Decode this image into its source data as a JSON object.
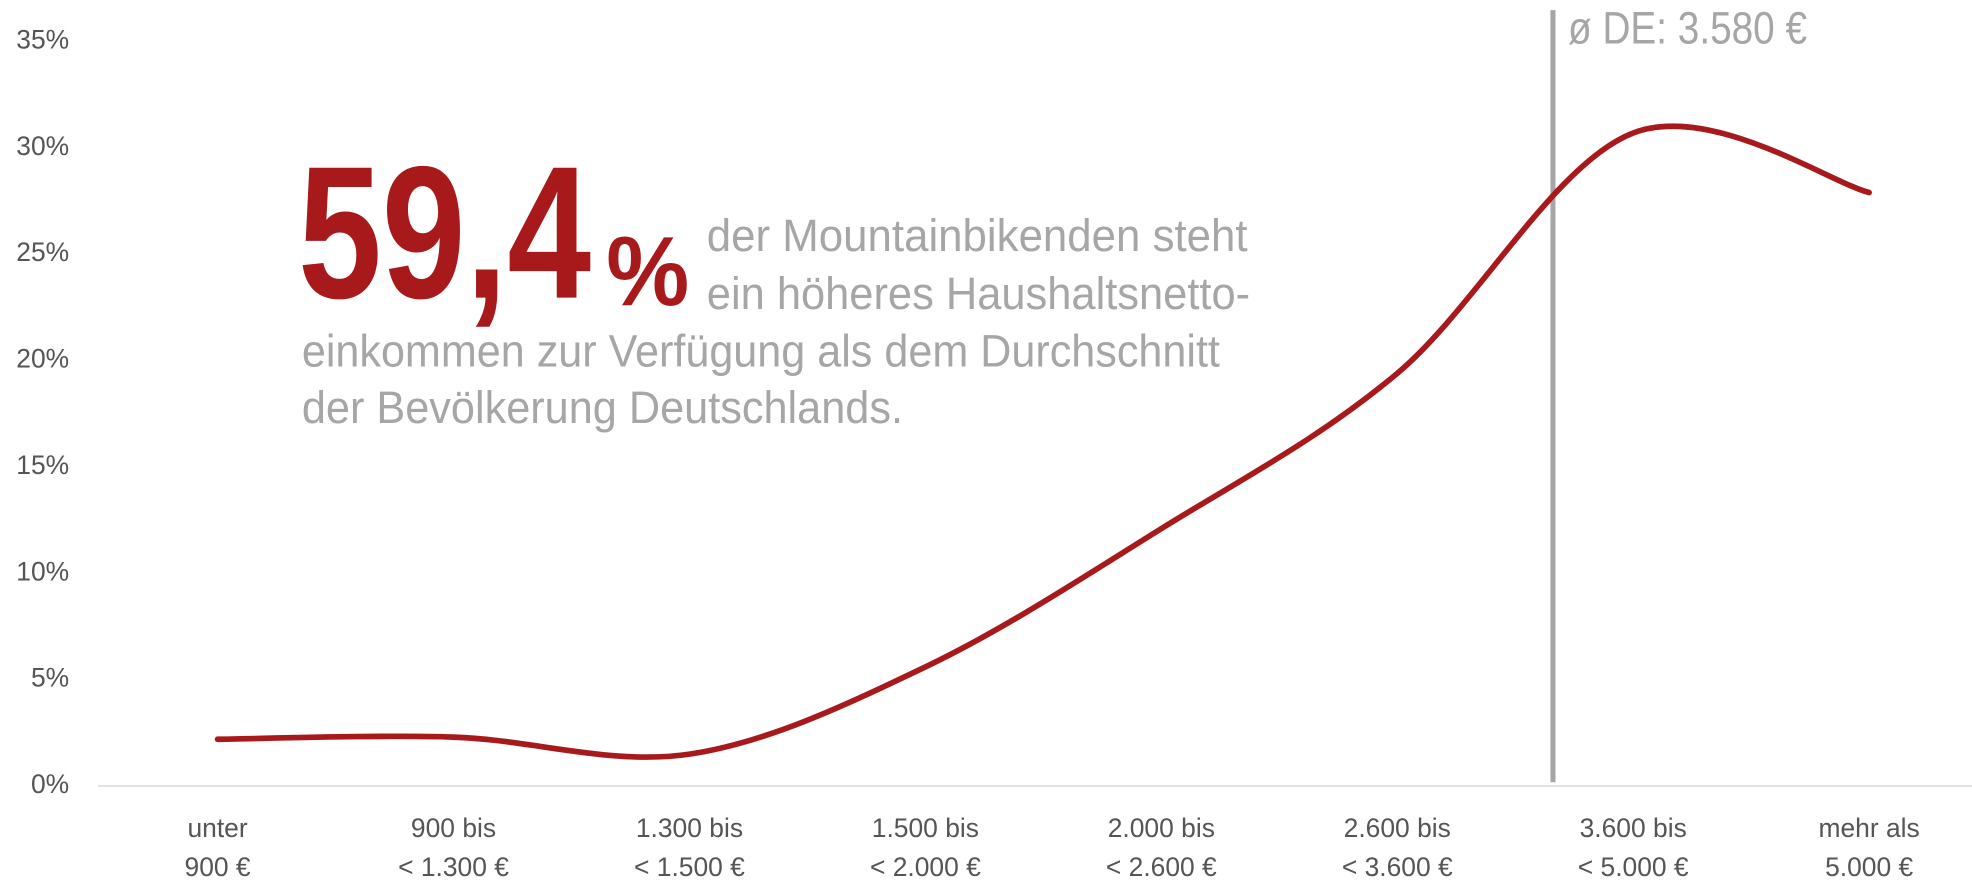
{
  "chart_data": {
    "type": "line",
    "categories": [
      [
        "unter",
        "900 €"
      ],
      [
        "900 bis",
        "< 1.300 €"
      ],
      [
        "1.300 bis",
        "< 1.500 €"
      ],
      [
        "1.500 bis",
        "< 2.000 €"
      ],
      [
        "2.000 bis",
        "< 2.600 €"
      ],
      [
        "2.600 bis",
        "< 3.600 €"
      ],
      [
        "3.600 bis",
        "< 5.000 €"
      ],
      [
        "mehr als",
        "5.000 €"
      ]
    ],
    "values": [
      2.2,
      2.3,
      1.5,
      5.6,
      12.1,
      19.4,
      30.7,
      27.9
    ],
    "color": "#a8191c",
    "ylim": [
      0,
      35
    ],
    "yticks": [
      {
        "value": 0,
        "label": "0%"
      },
      {
        "value": 5,
        "label": "5%"
      },
      {
        "value": 10,
        "label": "10%"
      },
      {
        "value": 15,
        "label": "15%"
      },
      {
        "value": 20,
        "label": "20%"
      },
      {
        "value": 25,
        "label": "25%"
      },
      {
        "value": 30,
        "label": "30%"
      },
      {
        "value": 35,
        "label": "35%"
      }
    ],
    "reference_line": {
      "label": "ø DE: 3.580 €",
      "color": "#a6a6a6"
    },
    "headline": {
      "value": "59,4",
      "unit": "%",
      "lines": [
        "der Mountainbikenden steht",
        "ein höheres Haushaltsnetto-",
        "einkommen zur Verfügung als dem Durchschnitt",
        "der Bevölkerung Deutschlands."
      ]
    }
  }
}
